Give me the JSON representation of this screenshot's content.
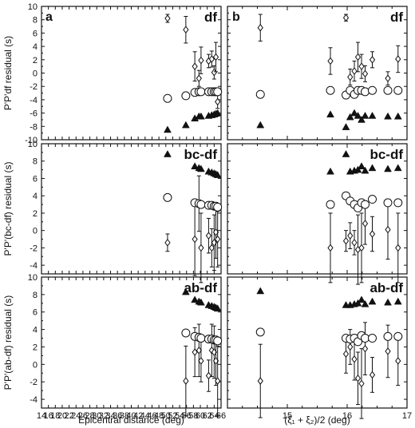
{
  "chart_data": {
    "type": "scatter",
    "marker_legend": "open circle = ab; diamond with error bar = bc; filled triangle = df (source data)",
    "left_x_axis": {
      "label": "Epicentral distance (deg)",
      "range": [
        14,
        66
      ],
      "ticks": [
        "14",
        "16",
        "18",
        "20",
        "22",
        "24",
        "26",
        "28",
        "30",
        "32",
        "34",
        "36",
        "38",
        "40",
        "42",
        "44",
        "46",
        "48",
        "50",
        "52",
        "54",
        "56",
        "58",
        "60",
        "62",
        "64",
        "66"
      ]
    },
    "right_x_axis": {
      "label": "(ξ₁ + ξ₂)/2 (deg)",
      "range": [
        14,
        17
      ],
      "ticks": [
        "15",
        "16",
        "17"
      ]
    },
    "panel_letters": {
      "left": "a",
      "right": "b"
    },
    "rows": [
      {
        "tag": "df",
        "ylabel": "P'P'df residual (s)",
        "ylim": [
          -10,
          10
        ],
        "yticks": [
          "10",
          "8",
          "6",
          "4",
          "2",
          "0",
          "-2",
          "-4",
          "-6",
          "-8",
          "-10"
        ],
        "left": {
          "circles": [
            [
              50.5,
              -3.8
            ],
            [
              55.8,
              -3.4
            ],
            [
              58.4,
              -2.9
            ],
            [
              59.6,
              -2.8
            ],
            [
              60.2,
              -2.8
            ],
            [
              62.4,
              -2.8
            ],
            [
              63.3,
              -2.8
            ],
            [
              64.0,
              -2.8
            ],
            [
              64.5,
              -2.8
            ],
            [
              65.0,
              -2.8
            ]
          ],
          "triangles": [
            [
              50.5,
              -8.5
            ],
            [
              55.8,
              -7.8
            ],
            [
              58.4,
              -6.8
            ],
            [
              59.6,
              -6.5
            ],
            [
              60.2,
              -6.5
            ],
            [
              62.4,
              -6.4
            ],
            [
              63.3,
              -6.3
            ],
            [
              64.0,
              -6.2
            ],
            [
              64.5,
              -6.1
            ],
            [
              65.0,
              -6.0
            ]
          ],
          "diamonds": [
            [
              50.5,
              8.2,
              0.6
            ],
            [
              55.8,
              6.5,
              2.0
            ],
            [
              58.4,
              1.0,
              2.2
            ],
            [
              59.6,
              -0.8,
              1.2
            ],
            [
              60.2,
              1.9,
              2.0
            ],
            [
              62.4,
              1.8,
              1.0
            ],
            [
              63.3,
              2.1,
              1.2
            ],
            [
              64.0,
              0.1,
              1.0
            ],
            [
              64.5,
              2.4,
              2.2
            ],
            [
              65.0,
              -4.3,
              1.0
            ]
          ]
        },
        "right": {
          "circles": [
            [
              14.55,
              -3.2
            ],
            [
              15.72,
              -2.6
            ],
            [
              15.98,
              -3.3
            ],
            [
              16.05,
              -2.6
            ],
            [
              16.12,
              -3.2
            ],
            [
              16.18,
              -2.6
            ],
            [
              16.24,
              -2.6
            ],
            [
              16.3,
              -2.8
            ],
            [
              16.42,
              -2.6
            ],
            [
              16.68,
              -2.6
            ],
            [
              16.85,
              -2.6
            ]
          ],
          "triangles": [
            [
              14.55,
              -7.8
            ],
            [
              15.72,
              -6.2
            ],
            [
              15.98,
              -8.1
            ],
            [
              16.05,
              -6.6
            ],
            [
              16.12,
              -6.0
            ],
            [
              16.18,
              -6.4
            ],
            [
              16.24,
              -7.0
            ],
            [
              16.3,
              -6.4
            ],
            [
              16.42,
              -6.4
            ],
            [
              16.68,
              -6.5
            ],
            [
              16.85,
              -6.5
            ]
          ],
          "diamonds": [
            [
              14.55,
              6.8,
              2.0
            ],
            [
              15.72,
              1.8,
              2.0
            ],
            [
              15.98,
              8.3,
              0.5
            ],
            [
              16.05,
              -0.6,
              1.2
            ],
            [
              16.12,
              0.3,
              1.5
            ],
            [
              16.18,
              2.4,
              2.2
            ],
            [
              16.24,
              1.0,
              1.8
            ],
            [
              16.3,
              -0.1,
              1.2
            ],
            [
              16.42,
              2.0,
              1.2
            ],
            [
              16.68,
              -0.8,
              1.0
            ],
            [
              16.85,
              2.1,
              2.0
            ]
          ]
        }
      },
      {
        "tag": "bc-df",
        "ylabel": "P'P'(bc-df) residual (s)",
        "ylim": [
          -5,
          10
        ],
        "yticks": [
          "10",
          "8",
          "6",
          "4",
          "2",
          "0",
          "-2",
          "-4"
        ],
        "left": {
          "circles": [
            [
              50.5,
              3.8
            ],
            [
              58.4,
              3.2
            ],
            [
              59.6,
              3.1
            ],
            [
              60.2,
              3.0
            ],
            [
              62.4,
              2.9
            ],
            [
              63.3,
              2.9
            ],
            [
              64.0,
              2.8
            ],
            [
              64.5,
              2.8
            ],
            [
              65.0,
              2.7
            ]
          ],
          "triangles": [
            [
              50.5,
              8.8
            ],
            [
              58.4,
              7.4
            ],
            [
              59.6,
              7.2
            ],
            [
              60.2,
              7.1
            ],
            [
              62.4,
              6.8
            ],
            [
              63.3,
              6.7
            ],
            [
              64.0,
              6.6
            ],
            [
              64.5,
              6.5
            ],
            [
              65.0,
              6.4
            ]
          ],
          "diamonds": [
            [
              50.5,
              -1.4,
              1.0
            ],
            [
              58.4,
              -1.0,
              4.2
            ],
            [
              59.6,
              3.1,
              3.2
            ],
            [
              60.2,
              -2.0,
              4.0
            ],
            [
              62.4,
              -0.6,
              2.0
            ],
            [
              63.3,
              -2.0,
              2.2
            ],
            [
              64.0,
              -1.4,
              3.2
            ],
            [
              64.5,
              -0.2,
              3.0
            ],
            [
              65.0,
              -1.0,
              3.2
            ]
          ]
        },
        "right": {
          "circles": [
            [
              15.72,
              3.0
            ],
            [
              15.98,
              4.0
            ],
            [
              16.05,
              3.4
            ],
            [
              16.12,
              3.0
            ],
            [
              16.18,
              2.6
            ],
            [
              16.24,
              3.2
            ],
            [
              16.3,
              3.0
            ],
            [
              16.42,
              3.6
            ],
            [
              16.68,
              3.2
            ],
            [
              16.85,
              3.2
            ]
          ],
          "triangles": [
            [
              15.72,
              6.8
            ],
            [
              15.98,
              8.8
            ],
            [
              16.05,
              6.8
            ],
            [
              16.12,
              6.9
            ],
            [
              16.18,
              7.0
            ],
            [
              16.24,
              7.4
            ],
            [
              16.3,
              6.9
            ],
            [
              16.42,
              7.2
            ],
            [
              16.68,
              7.1
            ],
            [
              16.85,
              7.2
            ]
          ],
          "diamonds": [
            [
              15.72,
              -2.0,
              4.0
            ],
            [
              15.98,
              -1.2,
              1.2
            ],
            [
              16.05,
              -0.6,
              1.5
            ],
            [
              16.12,
              -1.4,
              1.4
            ],
            [
              16.18,
              -2.2,
              4.0
            ],
            [
              16.24,
              -2.0,
              4.0
            ],
            [
              16.3,
              0.8,
              2.4
            ],
            [
              16.42,
              -0.4,
              2.0
            ],
            [
              16.68,
              0.1,
              3.4
            ],
            [
              16.85,
              -2.0,
              4.0
            ]
          ]
        }
      },
      {
        "tag": "ab-df",
        "ylabel": "P'P'(ab-df) residual (s)",
        "ylim": [
          -5,
          10
        ],
        "yticks": [
          "10",
          "8",
          "6",
          "4",
          "2",
          "0",
          "-2",
          "-4"
        ],
        "left": {
          "circles": [
            [
              55.8,
              3.6
            ],
            [
              58.4,
              3.2
            ],
            [
              59.6,
              3.1
            ],
            [
              60.2,
              3.0
            ],
            [
              62.4,
              2.9
            ],
            [
              63.3,
              2.9
            ],
            [
              64.0,
              2.8
            ],
            [
              64.5,
              2.8
            ],
            [
              65.0,
              2.7
            ]
          ],
          "triangles": [
            [
              55.8,
              8.3
            ],
            [
              58.4,
              7.4
            ],
            [
              59.6,
              7.2
            ],
            [
              60.2,
              7.1
            ],
            [
              62.4,
              6.8
            ],
            [
              63.3,
              6.7
            ],
            [
              64.0,
              6.6
            ],
            [
              64.5,
              6.5
            ],
            [
              65.0,
              6.4
            ]
          ],
          "diamonds": [
            [
              55.8,
              -1.9,
              4.0
            ],
            [
              58.4,
              1.4,
              2.8
            ],
            [
              59.6,
              1.6,
              3.0
            ],
            [
              60.2,
              0.4,
              2.4
            ],
            [
              62.4,
              -1.3,
              1.8
            ],
            [
              63.3,
              1.6,
              3.0
            ],
            [
              64.0,
              1.4,
              3.0
            ],
            [
              64.5,
              0.4,
              2.8
            ],
            [
              65.0,
              -1.9,
              4.0
            ]
          ]
        },
        "right": {
          "circles": [
            [
              14.55,
              3.7
            ],
            [
              15.98,
              3.0
            ],
            [
              16.05,
              2.9
            ],
            [
              16.12,
              3.0
            ],
            [
              16.18,
              2.6
            ],
            [
              16.24,
              3.3
            ],
            [
              16.3,
              3.0
            ],
            [
              16.42,
              3.0
            ],
            [
              16.68,
              3.2
            ],
            [
              16.85,
              3.2
            ]
          ],
          "triangles": [
            [
              14.55,
              8.4
            ],
            [
              15.98,
              6.8
            ],
            [
              16.05,
              6.8
            ],
            [
              16.12,
              6.9
            ],
            [
              16.18,
              7.0
            ],
            [
              16.24,
              7.4
            ],
            [
              16.3,
              6.9
            ],
            [
              16.42,
              7.2
            ],
            [
              16.68,
              7.1
            ],
            [
              16.85,
              7.2
            ]
          ],
          "diamonds": [
            [
              14.55,
              -1.9,
              4.2
            ],
            [
              15.98,
              1.2,
              2.2
            ],
            [
              16.05,
              2.0,
              2.0
            ],
            [
              16.12,
              0.6,
              2.4
            ],
            [
              16.18,
              -1.6,
              3.0
            ],
            [
              16.24,
              -2.2,
              4.0
            ],
            [
              16.3,
              1.8,
              3.0
            ],
            [
              16.42,
              -1.2,
              2.0
            ],
            [
              16.68,
              1.5,
              3.0
            ],
            [
              16.85,
              0.4,
              2.8
            ]
          ]
        }
      }
    ]
  }
}
